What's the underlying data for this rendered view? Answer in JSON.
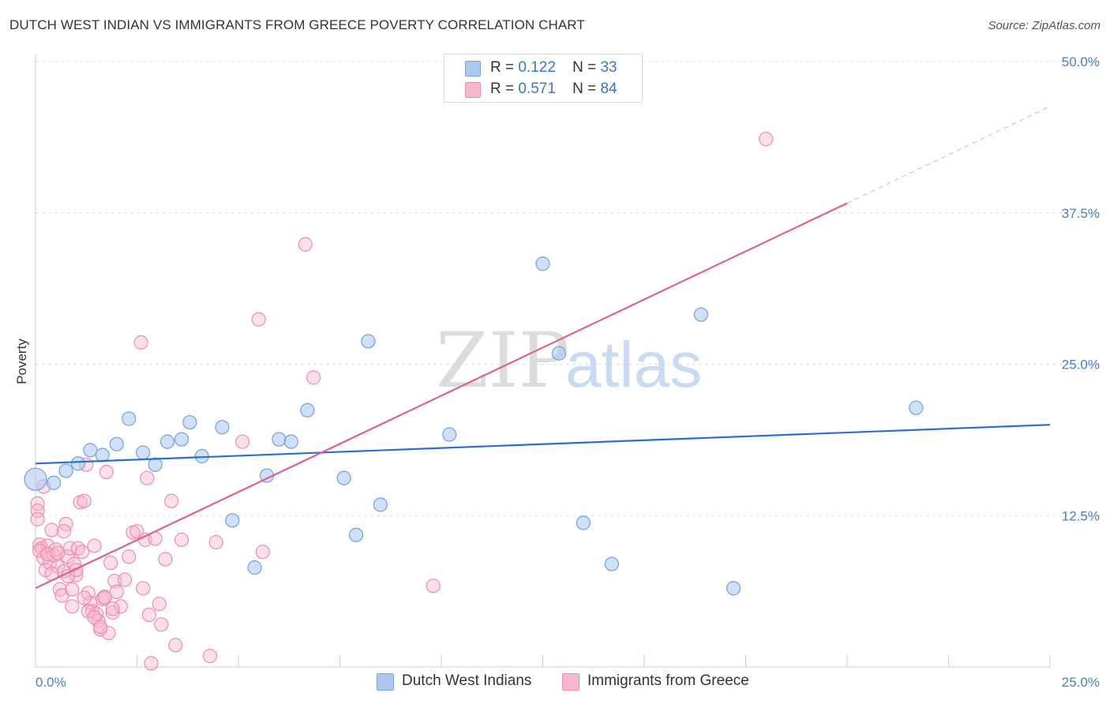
{
  "title": "DUTCH WEST INDIAN VS IMMIGRANTS FROM GREECE POVERTY CORRELATION CHART",
  "source": "Source: ZipAtlas.com",
  "watermark": {
    "zip": "ZIP",
    "atlas": "atlas"
  },
  "legend": {
    "series1": {
      "r_label": "R =",
      "r_value": "0.122",
      "n_label": "N =",
      "n_value": "33"
    },
    "series2": {
      "r_label": "R =",
      "r_value": "0.571",
      "n_label": "N =",
      "n_value": "84"
    }
  },
  "chart_data": {
    "type": "scatter",
    "title": "DUTCH WEST INDIAN VS IMMIGRANTS FROM GREECE POVERTY CORRELATION CHART",
    "xlabel": "",
    "ylabel": "Poverty",
    "xlim": [
      0,
      25
    ],
    "ylim": [
      0,
      50
    ],
    "x_tick_labels": [
      "0.0%",
      "25.0%"
    ],
    "y_ticks": [
      12.5,
      25.0,
      37.5,
      50.0
    ],
    "y_tick_labels": [
      "12.5%",
      "25.0%",
      "37.5%",
      "50.0%"
    ],
    "grid": true,
    "legend_position": "bottom",
    "series": [
      {
        "name": "Dutch West Indians",
        "color": "#7aa5e0",
        "fill": "#aac8f0",
        "line_color": "#2a6fcc",
        "trend": {
          "x": [
            0,
            25
          ],
          "y": [
            16.8,
            20.0
          ]
        },
        "points": [
          [
            0.0,
            15.5
          ],
          [
            0.45,
            15.2
          ],
          [
            0.75,
            16.2
          ],
          [
            1.05,
            16.8
          ],
          [
            1.35,
            17.9
          ],
          [
            1.65,
            17.5
          ],
          [
            2.0,
            18.4
          ],
          [
            2.3,
            20.5
          ],
          [
            2.65,
            17.7
          ],
          [
            2.95,
            16.7
          ],
          [
            3.25,
            18.6
          ],
          [
            3.6,
            18.8
          ],
          [
            3.8,
            20.2
          ],
          [
            4.1,
            17.4
          ],
          [
            4.6,
            19.8
          ],
          [
            4.85,
            12.1
          ],
          [
            5.4,
            8.2
          ],
          [
            5.7,
            15.8
          ],
          [
            6.0,
            18.8
          ],
          [
            6.3,
            18.6
          ],
          [
            6.7,
            21.2
          ],
          [
            7.6,
            15.6
          ],
          [
            7.9,
            10.9
          ],
          [
            8.2,
            26.9
          ],
          [
            8.5,
            13.4
          ],
          [
            10.2,
            19.2
          ],
          [
            12.5,
            33.3
          ],
          [
            12.9,
            25.9
          ],
          [
            13.5,
            11.9
          ],
          [
            14.2,
            8.5
          ],
          [
            16.4,
            29.1
          ],
          [
            17.2,
            6.5
          ],
          [
            21.7,
            21.4
          ]
        ]
      },
      {
        "name": "Immigrants from Greece",
        "color": "#f08bb0",
        "fill": "#f7b7cf",
        "line_color": "#e0608e",
        "trend": {
          "x": [
            0,
            20
          ],
          "y": [
            6.5,
            38.3
          ]
        },
        "trend_dashed": {
          "x": [
            20,
            25
          ],
          "y": [
            38.3,
            46.3
          ]
        },
        "points": [
          [
            0.05,
            13.5
          ],
          [
            0.05,
            12.9
          ],
          [
            0.1,
            10.1
          ],
          [
            0.15,
            9.8
          ],
          [
            0.2,
            14.9
          ],
          [
            0.2,
            9.0
          ],
          [
            0.25,
            8.0
          ],
          [
            0.3,
            10.0
          ],
          [
            0.35,
            8.6
          ],
          [
            0.4,
            11.3
          ],
          [
            0.45,
            9.2
          ],
          [
            0.5,
            9.7
          ],
          [
            0.55,
            8.3
          ],
          [
            0.6,
            6.4
          ],
          [
            0.65,
            5.9
          ],
          [
            0.7,
            7.9
          ],
          [
            0.75,
            11.8
          ],
          [
            0.8,
            9.1
          ],
          [
            0.85,
            9.8
          ],
          [
            0.9,
            5.0
          ],
          [
            0.95,
            8.5
          ],
          [
            1.0,
            7.6
          ],
          [
            1.05,
            9.8
          ],
          [
            1.1,
            13.6
          ],
          [
            1.15,
            9.5
          ],
          [
            1.2,
            13.7
          ],
          [
            1.25,
            16.7
          ],
          [
            1.3,
            6.1
          ],
          [
            1.35,
            5.3
          ],
          [
            1.4,
            4.6
          ],
          [
            1.45,
            10.0
          ],
          [
            1.5,
            4.4
          ],
          [
            1.55,
            3.8
          ],
          [
            1.6,
            3.1
          ],
          [
            1.65,
            5.6
          ],
          [
            1.7,
            5.8
          ],
          [
            1.75,
            16.1
          ],
          [
            1.8,
            2.8
          ],
          [
            1.85,
            8.6
          ],
          [
            1.9,
            4.5
          ],
          [
            1.95,
            7.1
          ],
          [
            2.0,
            6.2
          ],
          [
            2.1,
            5.0
          ],
          [
            2.2,
            7.2
          ],
          [
            2.3,
            9.1
          ],
          [
            2.4,
            11.1
          ],
          [
            2.5,
            11.2
          ],
          [
            2.6,
            26.8
          ],
          [
            2.65,
            6.5
          ],
          [
            2.7,
            10.5
          ],
          [
            2.75,
            15.6
          ],
          [
            2.8,
            4.3
          ],
          [
            2.85,
            0.3
          ],
          [
            2.95,
            10.6
          ],
          [
            3.05,
            5.2
          ],
          [
            3.1,
            3.5
          ],
          [
            3.2,
            8.9
          ],
          [
            3.35,
            13.7
          ],
          [
            3.45,
            1.8
          ],
          [
            3.6,
            10.5
          ],
          [
            4.3,
            0.9
          ],
          [
            4.45,
            10.3
          ],
          [
            5.1,
            18.6
          ],
          [
            5.5,
            28.7
          ],
          [
            5.6,
            9.5
          ],
          [
            6.65,
            34.9
          ],
          [
            6.85,
            23.9
          ],
          [
            9.8,
            6.7
          ],
          [
            18.0,
            43.6
          ],
          [
            0.05,
            12.2
          ],
          [
            0.1,
            9.6
          ],
          [
            0.3,
            9.3
          ],
          [
            0.4,
            7.7
          ],
          [
            0.55,
            9.4
          ],
          [
            0.7,
            11.2
          ],
          [
            0.8,
            7.5
          ],
          [
            0.9,
            6.4
          ],
          [
            1.0,
            8.0
          ],
          [
            1.2,
            5.7
          ],
          [
            1.3,
            4.6
          ],
          [
            1.45,
            4.1
          ],
          [
            1.6,
            3.3
          ],
          [
            1.7,
            5.7
          ],
          [
            1.9,
            4.8
          ]
        ]
      }
    ]
  }
}
